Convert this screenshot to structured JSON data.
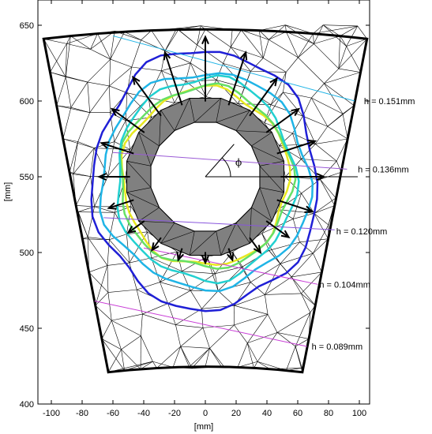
{
  "chart_data": {
    "type": "contour",
    "xlabel": "[mm]",
    "ylabel": "[mm]",
    "xlim": [
      -110,
      110
    ],
    "ylim": [
      400,
      655
    ],
    "x_ticks": [
      -100,
      -80,
      -60,
      -40,
      -20,
      0,
      20,
      40,
      60,
      80,
      100
    ],
    "y_ticks": [
      400,
      450,
      500,
      550,
      600,
      650
    ],
    "grid": false,
    "center": [
      0,
      550
    ],
    "angle_label": "ϕ",
    "outer_boundary": {
      "bottom_left": [
        -63,
        421
      ],
      "bottom_right": [
        63,
        421
      ],
      "top_left": [
        -105,
        641
      ],
      "top_right": [
        105,
        641
      ]
    },
    "hole_radius": 36,
    "ring_outer_radius": 52,
    "contours": [
      {
        "label": "h = 0.151mm",
        "color": "#1f1fd6",
        "rx": 73,
        "ry": 83,
        "cy": 546,
        "label_xy": [
          102,
          600
        ]
      },
      {
        "label": "h = 0.136mm",
        "color": "#1fb4e6",
        "rx": 68,
        "ry": 69,
        "cy": 546,
        "label_xy": [
          98,
          555
        ]
      },
      {
        "label": "h = 0.120mm",
        "color": "#22d0d0",
        "rx": 58,
        "ry": 65,
        "cy": 547,
        "label_xy": [
          84,
          514
        ]
      },
      {
        "label": "h = 0.104mm",
        "color": "#66e066",
        "rx": 56,
        "ry": 58,
        "cy": 548,
        "label_xy": [
          73,
          479
        ]
      },
      {
        "label": "h = 0.089mm",
        "color": "#e8e820",
        "rx": 54,
        "ry": 57,
        "cy": 548,
        "label_xy": [
          68,
          438
        ]
      }
    ],
    "label_leaders": [
      {
        "from": [
          -60,
          643
        ],
        "to": [
          97,
          600
        ],
        "color": "#1fb4e6"
      },
      {
        "from": [
          -60,
          566
        ],
        "to": [
          92,
          555
        ],
        "color": "#9a5ad6"
      },
      {
        "from": [
          -66,
          523
        ],
        "to": [
          84,
          515
        ],
        "color": "#8855dd"
      },
      {
        "from": [
          -40,
          503
        ],
        "to": [
          73,
          479
        ],
        "color": "#c83cd6"
      },
      {
        "from": [
          -72,
          468
        ],
        "to": [
          66,
          438
        ],
        "color": "#c83cd6"
      }
    ],
    "arrows": [
      {
        "angle": 0,
        "length": 28
      },
      {
        "angle": 18,
        "length": 26
      },
      {
        "angle": 36,
        "length": 26
      },
      {
        "angle": 54,
        "length": 30
      },
      {
        "angle": 72,
        "length": 36
      },
      {
        "angle": 90,
        "length": 42
      },
      {
        "angle": 108,
        "length": 36
      },
      {
        "angle": 126,
        "length": 31
      },
      {
        "angle": 144,
        "length": 26
      },
      {
        "angle": 162,
        "length": 22
      },
      {
        "angle": 180,
        "length": 20
      },
      {
        "angle": 198,
        "length": 17
      },
      {
        "angle": 216,
        "length": 13
      },
      {
        "angle": 234,
        "length": 10
      },
      {
        "angle": 252,
        "length": 8
      },
      {
        "angle": 270,
        "length": 7
      },
      {
        "angle": 288,
        "length": 8
      },
      {
        "angle": 306,
        "length": 12
      },
      {
        "angle": 324,
        "length": 18
      },
      {
        "angle": 342,
        "length": 24
      }
    ]
  }
}
